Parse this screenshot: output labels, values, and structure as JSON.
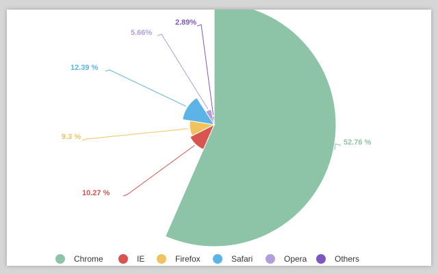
{
  "chart_data": {
    "type": "pie",
    "variant": "rose",
    "categories": [
      "Chrome",
      "IE",
      "Firefox",
      "Safari",
      "Opera",
      "Others"
    ],
    "values": [
      52.76,
      10.27,
      9.3,
      12.39,
      5.66,
      2.89
    ],
    "labels": [
      "52.76 %",
      "10.27 %",
      "9.3 %",
      "12.39 %",
      "5.66%",
      "2.89%"
    ],
    "colors": [
      "#8dc3a7",
      "#d9534f",
      "#f0c35e",
      "#5bb4e5",
      "#b39ddb",
      "#7e57c2"
    ],
    "legend_position": "bottom",
    "title": "",
    "xlabel": "",
    "ylabel": ""
  }
}
